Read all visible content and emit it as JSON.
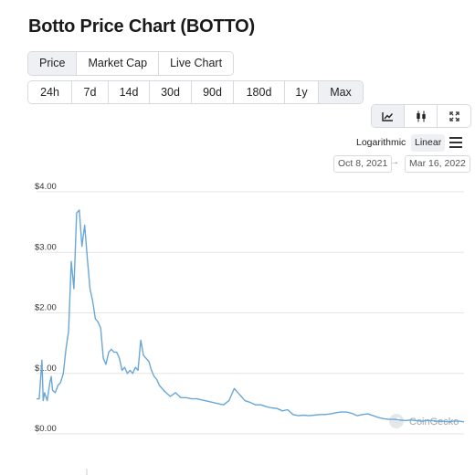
{
  "title": "Botto Price Chart (BOTTO)",
  "tabs": [
    {
      "label": "Price",
      "active": true
    },
    {
      "label": "Market Cap",
      "active": false
    },
    {
      "label": "Live Chart",
      "active": false
    }
  ],
  "ranges": [
    {
      "label": "24h",
      "active": false
    },
    {
      "label": "7d",
      "active": false
    },
    {
      "label": "14d",
      "active": false
    },
    {
      "label": "30d",
      "active": false
    },
    {
      "label": "90d",
      "active": false
    },
    {
      "label": "180d",
      "active": false
    },
    {
      "label": "1y",
      "active": false
    },
    {
      "label": "Max",
      "active": true
    }
  ],
  "chart_types": [
    {
      "icon": "line-chart-icon",
      "active": true
    },
    {
      "icon": "candlestick-icon",
      "active": false
    },
    {
      "icon": "fullscreen-icon",
      "active": false
    }
  ],
  "scale": {
    "logarithmic_label": "Logarithmic",
    "linear_label": "Linear",
    "selected": "Linear"
  },
  "date_range": {
    "from": "Oct 8, 2021",
    "to": "Mar 16, 2022"
  },
  "watermark": "CoinGecko",
  "colors": {
    "line": "#6aa7d6",
    "grid": "#e6e6e6",
    "active_bg": "#eef0f3",
    "border": "#d6d9dd"
  },
  "chart_data": {
    "type": "line",
    "title": "",
    "xlabel": "",
    "ylabel": "",
    "ylim": [
      0,
      4
    ],
    "yticks": [
      0,
      1,
      2,
      3,
      4
    ],
    "ytick_labels": [
      "$0.00",
      "$1.00",
      "$2.00",
      "$3.00",
      "$4.00"
    ],
    "grid": true,
    "x_range": [
      "2021-10-08",
      "2022-03-16"
    ],
    "series": [
      {
        "name": "",
        "x": [
          0,
          1,
          2,
          2.5,
          3,
          4,
          5,
          5.5,
          6,
          7,
          8,
          9,
          10,
          11,
          12,
          13,
          14,
          15,
          16,
          17,
          18,
          19,
          20,
          21,
          22,
          23,
          24,
          25,
          26,
          27,
          28,
          29,
          30,
          31,
          32,
          33,
          34,
          35,
          36,
          37,
          38,
          39,
          40,
          41,
          42,
          43,
          44,
          45,
          46,
          48,
          50,
          52,
          54,
          56,
          58,
          60,
          62,
          64,
          66,
          68,
          70,
          72,
          74,
          76,
          78,
          80,
          82,
          84,
          86,
          88,
          90,
          92,
          94,
          96,
          98,
          100,
          102,
          104,
          106,
          108,
          110,
          112,
          114,
          116,
          118,
          120,
          122,
          124,
          126,
          128,
          130,
          132,
          134,
          136,
          138,
          140,
          142,
          144,
          146,
          148,
          150,
          152,
          154,
          156,
          158,
          160
        ],
        "values": [
          0.58,
          0.58,
          1.22,
          0.55,
          0.68,
          0.55,
          0.85,
          0.95,
          0.72,
          0.68,
          0.8,
          0.85,
          1.0,
          1.4,
          1.7,
          2.85,
          2.4,
          3.65,
          3.7,
          3.1,
          3.45,
          2.9,
          2.4,
          2.2,
          1.9,
          1.85,
          1.75,
          1.25,
          1.15,
          1.35,
          1.4,
          1.35,
          1.35,
          1.25,
          1.05,
          1.1,
          1.0,
          1.05,
          1.0,
          1.1,
          1.05,
          1.55,
          1.3,
          1.25,
          1.2,
          1.05,
          0.95,
          0.9,
          0.8,
          0.7,
          0.62,
          0.68,
          0.6,
          0.6,
          0.58,
          0.58,
          0.56,
          0.54,
          0.52,
          0.5,
          0.48,
          0.55,
          0.75,
          0.65,
          0.55,
          0.52,
          0.48,
          0.48,
          0.45,
          0.43,
          0.42,
          0.38,
          0.4,
          0.32,
          0.3,
          0.31,
          0.3,
          0.31,
          0.32,
          0.32,
          0.33,
          0.35,
          0.36,
          0.36,
          0.34,
          0.3,
          0.32,
          0.33,
          0.3,
          0.27,
          0.25,
          0.24,
          0.24,
          0.23,
          0.22,
          0.23,
          0.22,
          0.21,
          0.22,
          0.22,
          0.21,
          0.21,
          0.2,
          0.21,
          0.21,
          0.2
        ]
      }
    ]
  }
}
